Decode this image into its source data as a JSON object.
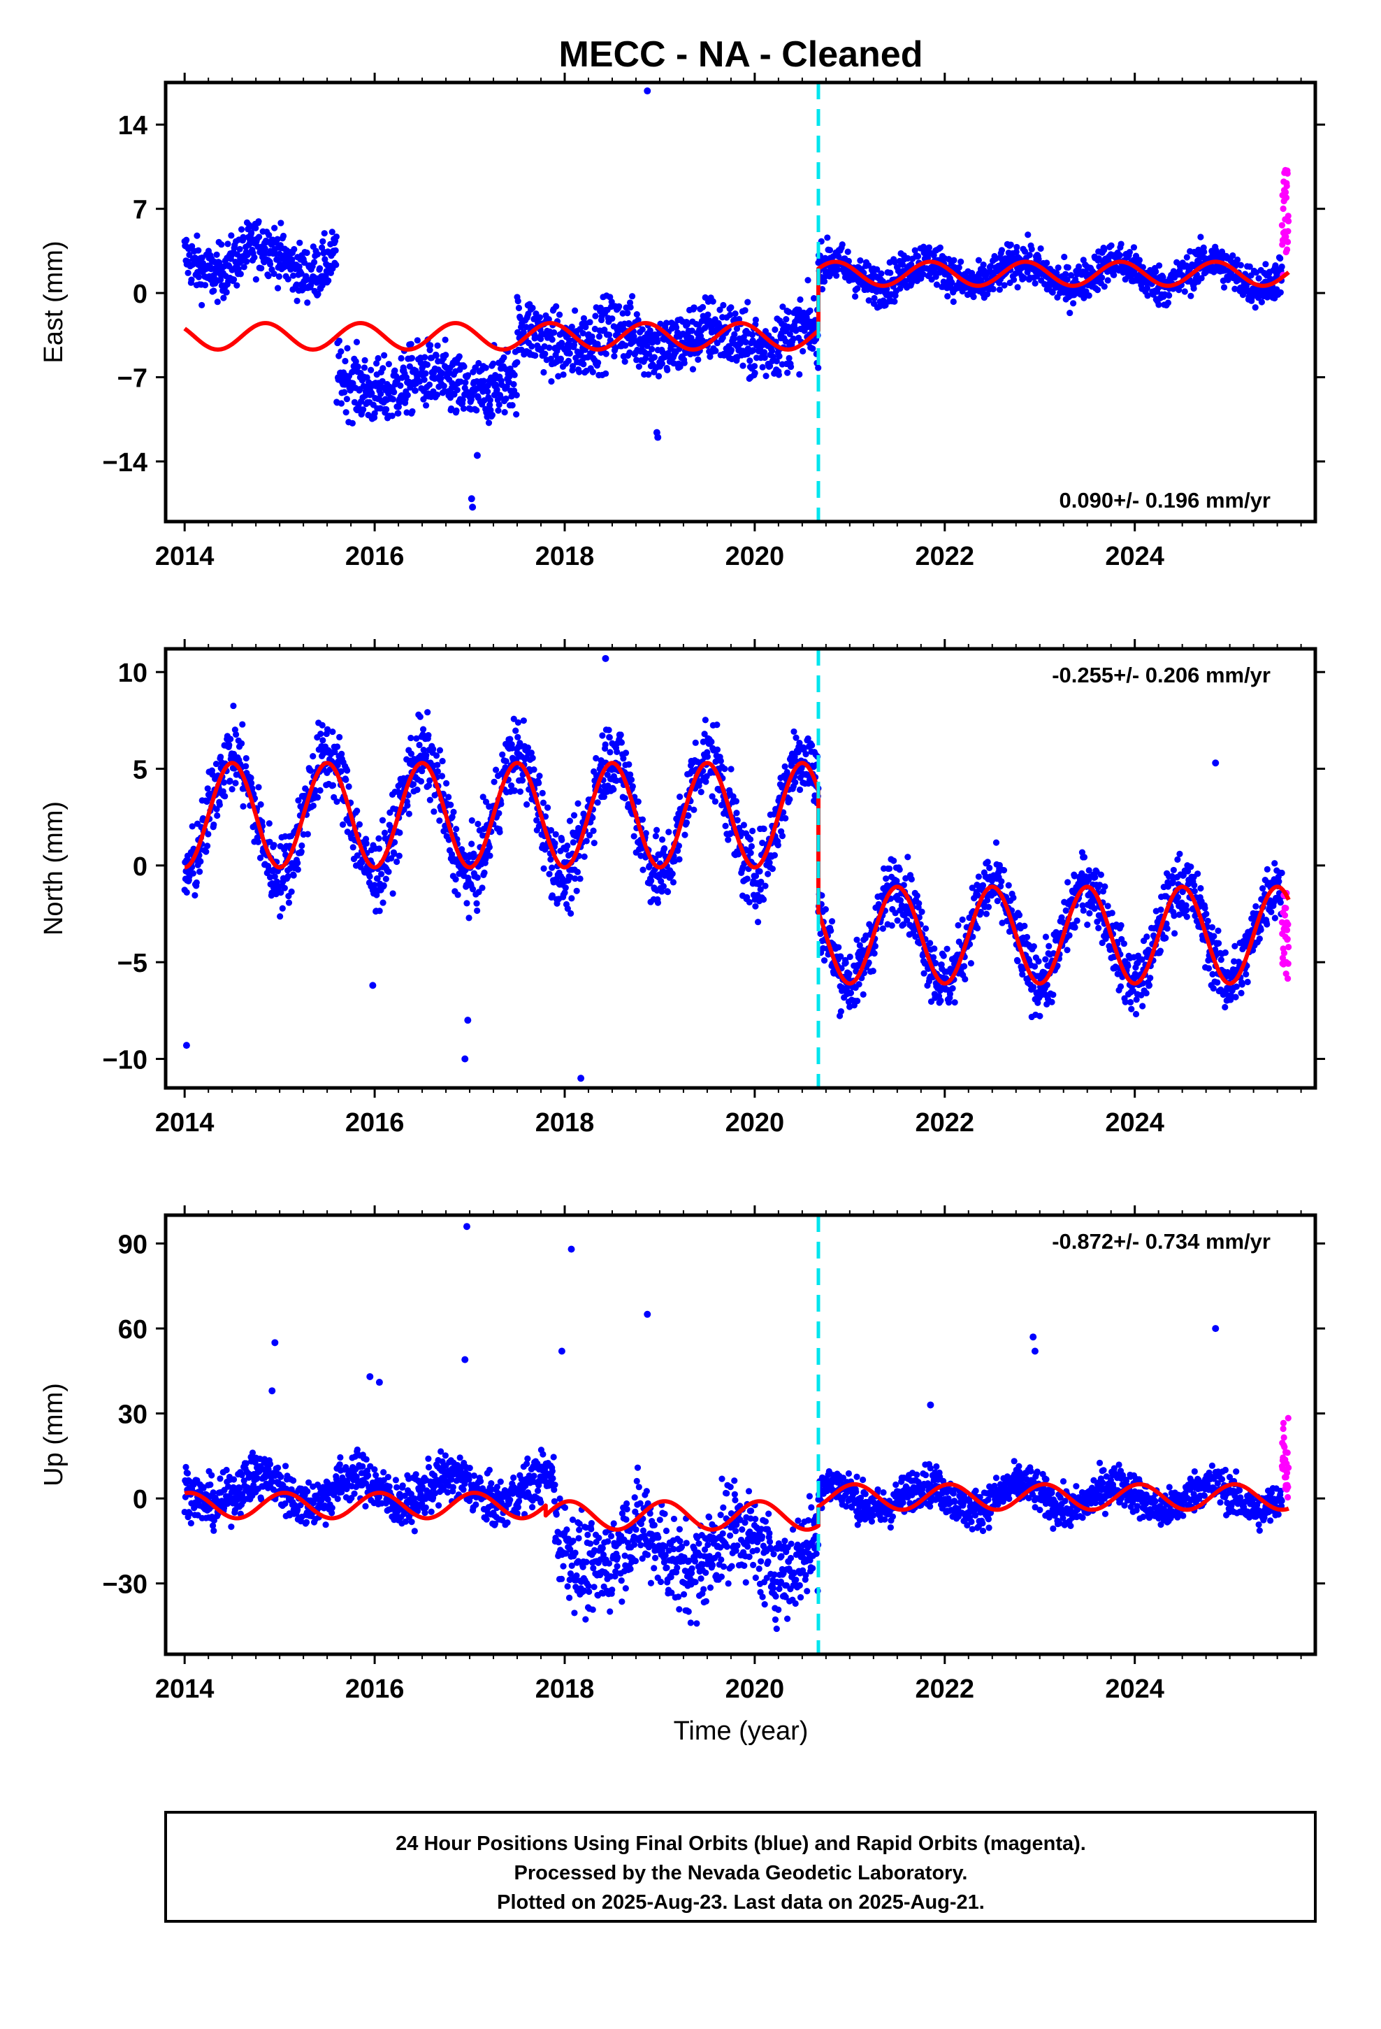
{
  "figure": {
    "title": "MECC  - NA - Cleaned",
    "xlabel": "Time (year)",
    "footer_lines": [
      "24 Hour Positions Using Final Orbits (blue) and Rapid Orbits (magenta).",
      "Processed by the Nevada Geodetic Laboratory.",
      "Plotted on 2025-Aug-23. Last data on 2025-Aug-21."
    ]
  },
  "colors": {
    "final": "#0000ff",
    "rapid": "#ff00ff",
    "model": "#ff0000",
    "break": "#00e5ee"
  },
  "chart_data": [
    {
      "type": "scatter",
      "ylabel": "East (mm)",
      "xlim": [
        2013.8,
        2025.9
      ],
      "ylim": [
        -19,
        17.5
      ],
      "xticks": [
        2014,
        2016,
        2018,
        2020,
        2022,
        2024
      ],
      "yticks": [
        14,
        7,
        0,
        -7,
        -14
      ],
      "rate": "0.090+/- 0.196 mm/yr",
      "rate_position": "bottom-right",
      "break_epoch": 2020.67,
      "series": [
        {
          "segment": [
            2014.0,
            2015.6
          ],
          "level": 2.8,
          "annual": 1.2,
          "phase": 0.55,
          "noise": 1.6
        },
        {
          "segment": [
            2015.6,
            2017.5
          ],
          "level": -7.6,
          "annual": 0.8,
          "phase": 0.3,
          "noise": 2.0
        },
        {
          "segment": [
            2017.5,
            2020.67
          ],
          "level": -3.8,
          "annual": 0.8,
          "phase": 0.3,
          "noise": 2.0
        },
        {
          "segment": [
            2020.67,
            2025.55
          ],
          "level": 1.6,
          "annual": 1.0,
          "phase": 0.55,
          "noise": 1.2
        }
      ],
      "rapid": {
        "segment": [
          2025.55,
          2025.62
        ],
        "level": 6.0,
        "spread": 4.5
      },
      "outliers": [
        [
          2018.87,
          16.8
        ],
        [
          2017.02,
          -17.1
        ],
        [
          2017.03,
          -17.8
        ],
        [
          2018.97,
          -11.6
        ],
        [
          2018.98,
          -12.0
        ],
        [
          2017.08,
          -13.5
        ]
      ],
      "model": {
        "segments": [
          {
            "from": 2014.0,
            "to": 2020.67,
            "offset": -3.6,
            "amp": 1.1,
            "phase": 0.6
          },
          {
            "from": 2020.67,
            "to": 2025.62,
            "offset": 1.6,
            "amp": 1.0,
            "phase": 0.6
          }
        ]
      }
    },
    {
      "type": "scatter",
      "ylabel": "North (mm)",
      "xlim": [
        2013.8,
        2025.9
      ],
      "ylim": [
        -11.5,
        11.2
      ],
      "xticks": [
        2014,
        2016,
        2018,
        2020,
        2022,
        2024
      ],
      "yticks": [
        10,
        5,
        0,
        -5,
        -10
      ],
      "rate": "-0.255+/- 0.206 mm/yr",
      "rate_position": "top-right",
      "break_epoch": 2020.67,
      "series": [
        {
          "segment": [
            2014.0,
            2020.67
          ],
          "level": 2.6,
          "annual": 3.1,
          "phase": 0.25,
          "noise": 1.4
        },
        {
          "segment": [
            2020.67,
            2025.55
          ],
          "level": -3.5,
          "annual": 2.5,
          "phase": 0.25,
          "noise": 1.2
        }
      ],
      "rapid": {
        "segment": [
          2025.55,
          2025.62
        ],
        "level": -3.8,
        "spread": 2.4
      },
      "outliers": [
        [
          2014.02,
          -9.3
        ],
        [
          2016.95,
          -10.0
        ],
        [
          2016.98,
          -8.0
        ],
        [
          2018.17,
          -11.0
        ],
        [
          2018.43,
          10.7
        ],
        [
          2024.85,
          5.3
        ],
        [
          2015.98,
          -6.2
        ]
      ],
      "model": {
        "segments": [
          {
            "from": 2014.0,
            "to": 2020.67,
            "offset": 2.6,
            "amp": 2.7,
            "phase": 0.25
          },
          {
            "from": 2020.67,
            "to": 2025.62,
            "offset": -3.6,
            "amp": 2.5,
            "phase": 0.25
          }
        ]
      }
    },
    {
      "type": "scatter",
      "ylabel": "Up (mm)",
      "xlim": [
        2013.8,
        2025.9
      ],
      "ylim": [
        -55,
        100
      ],
      "xticks": [
        2014,
        2016,
        2018,
        2020,
        2022,
        2024
      ],
      "yticks": [
        90,
        60,
        30,
        0,
        -30
      ],
      "rate": "-0.872+/- 0.734 mm/yr",
      "rate_position": "top-right",
      "break_epoch": 2020.67,
      "series": [
        {
          "segment": [
            2014.0,
            2017.9
          ],
          "level": 3.0,
          "annual": 5.0,
          "phase": 0.55,
          "noise": 6.0
        },
        {
          "segment": [
            2017.9,
            2020.67
          ],
          "level": -18.0,
          "annual": 8.0,
          "phase": 0.55,
          "noise": 12.0
        },
        {
          "segment": [
            2020.67,
            2025.55
          ],
          "level": 0.5,
          "annual": 4.5,
          "phase": 0.55,
          "noise": 5.0
        }
      ],
      "rapid": {
        "segment": [
          2025.55,
          2025.62
        ],
        "level": 14.0,
        "spread": 15.0
      },
      "outliers": [
        [
          2016.97,
          96.0
        ],
        [
          2018.07,
          88.0
        ],
        [
          2018.87,
          65.0
        ],
        [
          2017.97,
          52.0
        ],
        [
          2014.95,
          55.0
        ],
        [
          2016.95,
          49.0
        ],
        [
          2014.92,
          38.0
        ],
        [
          2022.93,
          57.0
        ],
        [
          2022.95,
          52.0
        ],
        [
          2024.85,
          60.0
        ],
        [
          2015.95,
          43.0
        ],
        [
          2016.05,
          41.0
        ],
        [
          2021.85,
          33.0
        ]
      ],
      "model": {
        "segments": [
          {
            "from": 2014.0,
            "to": 2017.8,
            "offset": -2.5,
            "amp": 4.5,
            "phase": 0.8
          },
          {
            "from": 2017.8,
            "to": 2020.67,
            "offset": -6.0,
            "amp": 5.0,
            "phase": 0.8
          },
          {
            "from": 2020.67,
            "to": 2025.62,
            "offset": 0.5,
            "amp": 4.5,
            "phase": 0.8
          }
        ]
      }
    }
  ]
}
